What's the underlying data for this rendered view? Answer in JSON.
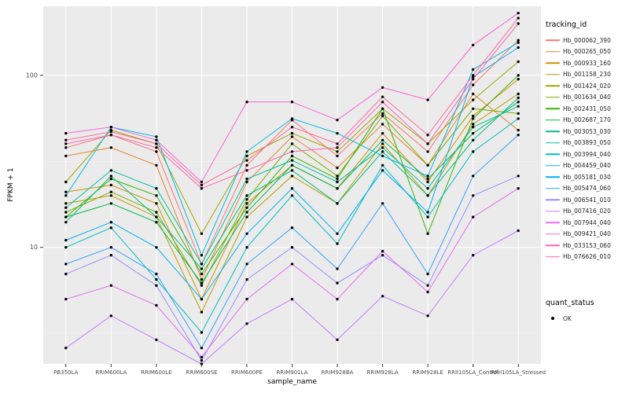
{
  "chart_data": {
    "type": "line",
    "title": "",
    "xlabel": "sample_name",
    "ylabel": "FPKM + 1",
    "y_scale": "log10",
    "ylim": [
      2.1,
      252
    ],
    "y_major_ticks": [
      10,
      100
    ],
    "y_minor_ticks": [
      3.162,
      31.62
    ],
    "grid": true,
    "panel_color": "#EBEBEB",
    "gridline_color": "#FFFFFF",
    "point_color": "#000000",
    "categories": [
      "PB350LA",
      "RRIM600LA",
      "RRIM600LE",
      "RRIM600SE",
      "RRIM600PE",
      "RRIM901LA",
      "RRIM928BA",
      "RRIM928LA",
      "RRIM928LE",
      "RRII105LA_Control",
      "RRII105LA_Stressed"
    ],
    "series": [
      {
        "name": "Hb_000062_390",
        "color": "#F8766D",
        "values": [
          38,
          45,
          36,
          8,
          30,
          55,
          34,
          60,
          36,
          88,
          160
        ]
      },
      {
        "name": "Hb_000265_050",
        "color": "#EA8331",
        "values": [
          34,
          38,
          30,
          6.5,
          24,
          44,
          29,
          52,
          30,
          78,
          48
        ]
      },
      {
        "name": "Hb_000933_160",
        "color": "#D89000",
        "values": [
          21,
          23,
          18,
          5,
          18,
          30,
          22,
          46,
          24,
          58,
          95
        ]
      },
      {
        "name": "Hb_001158_230",
        "color": "#C09B00",
        "values": [
          18,
          20,
          15,
          4.2,
          15,
          26,
          18,
          40,
          20,
          52,
          78
        ]
      },
      {
        "name": "Hb_001424_020",
        "color": "#A3A500",
        "values": [
          24,
          48,
          40,
          12,
          34,
          46,
          36,
          64,
          40,
          72,
          120
        ]
      },
      {
        "name": "Hb_001634_040",
        "color": "#7CAE00",
        "values": [
          16,
          21,
          16,
          6,
          19,
          40,
          26,
          58,
          30,
          64,
          60
        ]
      },
      {
        "name": "Hb_002431_050",
        "color": "#39B600",
        "values": [
          15,
          25,
          20,
          7,
          17,
          34,
          25,
          64,
          12,
          56,
          100
        ]
      },
      {
        "name": "Hb_002687_170",
        "color": "#00BB4E",
        "values": [
          15,
          18,
          14,
          6.2,
          16,
          30,
          22,
          42,
          25,
          46,
          70
        ]
      },
      {
        "name": "Hb_003053_030",
        "color": "#00BF7D",
        "values": [
          14,
          26,
          15,
          7.5,
          20,
          28,
          18,
          36,
          20,
          42,
          74
        ]
      },
      {
        "name": "Hb_003893_050",
        "color": "#00C1A3",
        "values": [
          17,
          28,
          22,
          8,
          25,
          32,
          24,
          38,
          22,
          50,
          66
        ]
      },
      {
        "name": "Hb_003994_040",
        "color": "#00BFC4",
        "values": [
          10,
          13,
          6.5,
          3.2,
          10,
          20,
          10.5,
          30,
          15,
          36,
          56
        ]
      },
      {
        "name": "Hb_004459_040",
        "color": "#00BAE0",
        "values": [
          20,
          50,
          44,
          9,
          36,
          56,
          46,
          34,
          26,
          108,
          155
        ]
      },
      {
        "name": "Hb_005181_030",
        "color": "#00B0F6",
        "values": [
          11,
          14,
          10,
          5,
          12,
          22,
          12,
          28,
          16,
          98,
          145
        ]
      },
      {
        "name": "Hb_005474_060",
        "color": "#35A2FF",
        "values": [
          8,
          10,
          7,
          2.6,
          8,
          13,
          7.5,
          18,
          7,
          26,
          45
        ]
      },
      {
        "name": "Hb_006541_010",
        "color": "#9590FF",
        "values": [
          7,
          9,
          6,
          2.2,
          6.5,
          10,
          6.2,
          9,
          6,
          20,
          26
        ]
      },
      {
        "name": "Hb_007416_020",
        "color": "#C77CFF",
        "values": [
          2.6,
          4,
          2.9,
          2.1,
          3.6,
          5,
          2.9,
          5.2,
          4,
          9,
          12.5
        ]
      },
      {
        "name": "Hb_007944_040",
        "color": "#E76BF3",
        "values": [
          5,
          6,
          4.6,
          2.3,
          5,
          8,
          5,
          9.5,
          5.5,
          15,
          22
        ]
      },
      {
        "name": "Hb_009421_040",
        "color": "#FA62DB",
        "values": [
          46,
          50,
          42,
          24,
          70,
          70,
          55,
          85,
          72,
          150,
          230
        ]
      },
      {
        "name": "Hb_033153_060",
        "color": "#FF62BC",
        "values": [
          40,
          45,
          38,
          22,
          28,
          36,
          38,
          70,
          40,
          95,
          200
        ]
      },
      {
        "name": "Hb_076626_010",
        "color": "#FF6A98",
        "values": [
          42,
          47,
          40,
          23,
          32,
          50,
          40,
          75,
          45,
          100,
          215
        ]
      }
    ],
    "legend": {
      "position": "right",
      "color_title": "tracking_id",
      "shape_title": "quant_status",
      "shape_items": [
        {
          "label": "OK"
        }
      ]
    }
  }
}
